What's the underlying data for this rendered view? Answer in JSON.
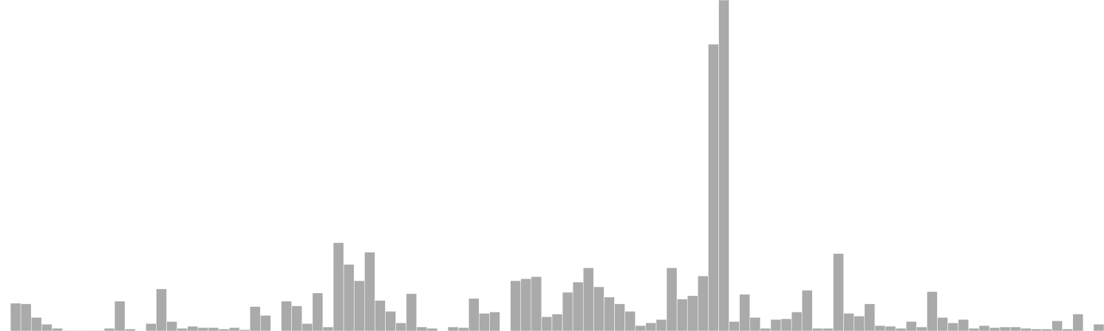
{
  "chart_data": {
    "type": "bar",
    "title": "",
    "xlabel": "",
    "ylabel": "",
    "ylim": [
      0,
      480
    ],
    "grid": false,
    "legend": "none",
    "bar_color": "#aaaaaa",
    "bar_edge_color": "#ffffff",
    "values": [
      0,
      41,
      40,
      20,
      10,
      4,
      1,
      1,
      1,
      1,
      4,
      44,
      3,
      0,
      11,
      62,
      14,
      4,
      7,
      5,
      5,
      3,
      5,
      2,
      36,
      23,
      0,
      44,
      37,
      11,
      56,
      6,
      130,
      98,
      74,
      116,
      45,
      29,
      12,
      55,
      6,
      4,
      0,
      6,
      5,
      48,
      26,
      28,
      0,
      74,
      77,
      80,
      21,
      25,
      57,
      72,
      93,
      65,
      50,
      40,
      29,
      8,
      12,
      17,
      93,
      47,
      52,
      81,
      422,
      487,
      14,
      54,
      20,
      4,
      17,
      18,
      28,
      60,
      4,
      4,
      114,
      26,
      22,
      40,
      8,
      7,
      4,
      14,
      6,
      58,
      20,
      12,
      17,
      4,
      8,
      5,
      6,
      6,
      4,
      3,
      3,
      15,
      3,
      25,
      0,
      10
    ]
  }
}
